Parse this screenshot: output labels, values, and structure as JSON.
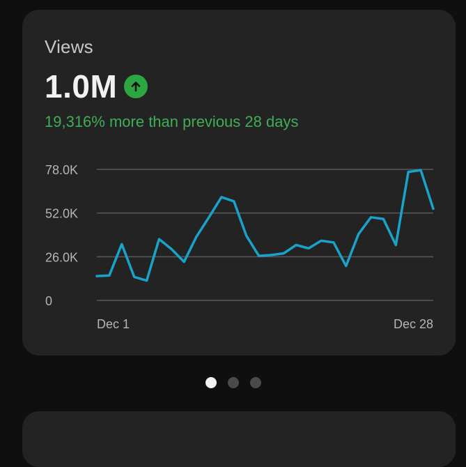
{
  "card": {
    "title": "Views",
    "value": "1.0M",
    "trend_icon": "arrow-up-icon",
    "comparison": "19,316% more than previous 28 days"
  },
  "chart_data": {
    "type": "line",
    "x_tick_labels": [
      "Dec 1",
      "Dec 28"
    ],
    "y_tick_labels": [
      "0",
      "26.0K",
      "52.0K",
      "78.0K"
    ],
    "y_ticks": [
      0,
      26000,
      52000,
      78000
    ],
    "ylim": [
      0,
      78000
    ],
    "grid": true,
    "series": [
      {
        "color": "#1aa3c9",
        "values": [
          14500,
          14800,
          33500,
          14000,
          11800,
          36500,
          30500,
          23000,
          38000,
          49500,
          61500,
          59000,
          38500,
          26500,
          27000,
          28000,
          33000,
          31000,
          35500,
          34500,
          20500,
          39500,
          49500,
          48500,
          33000,
          76500,
          77500,
          54500
        ]
      }
    ]
  },
  "pager": {
    "count": 3,
    "active_index": 0
  }
}
